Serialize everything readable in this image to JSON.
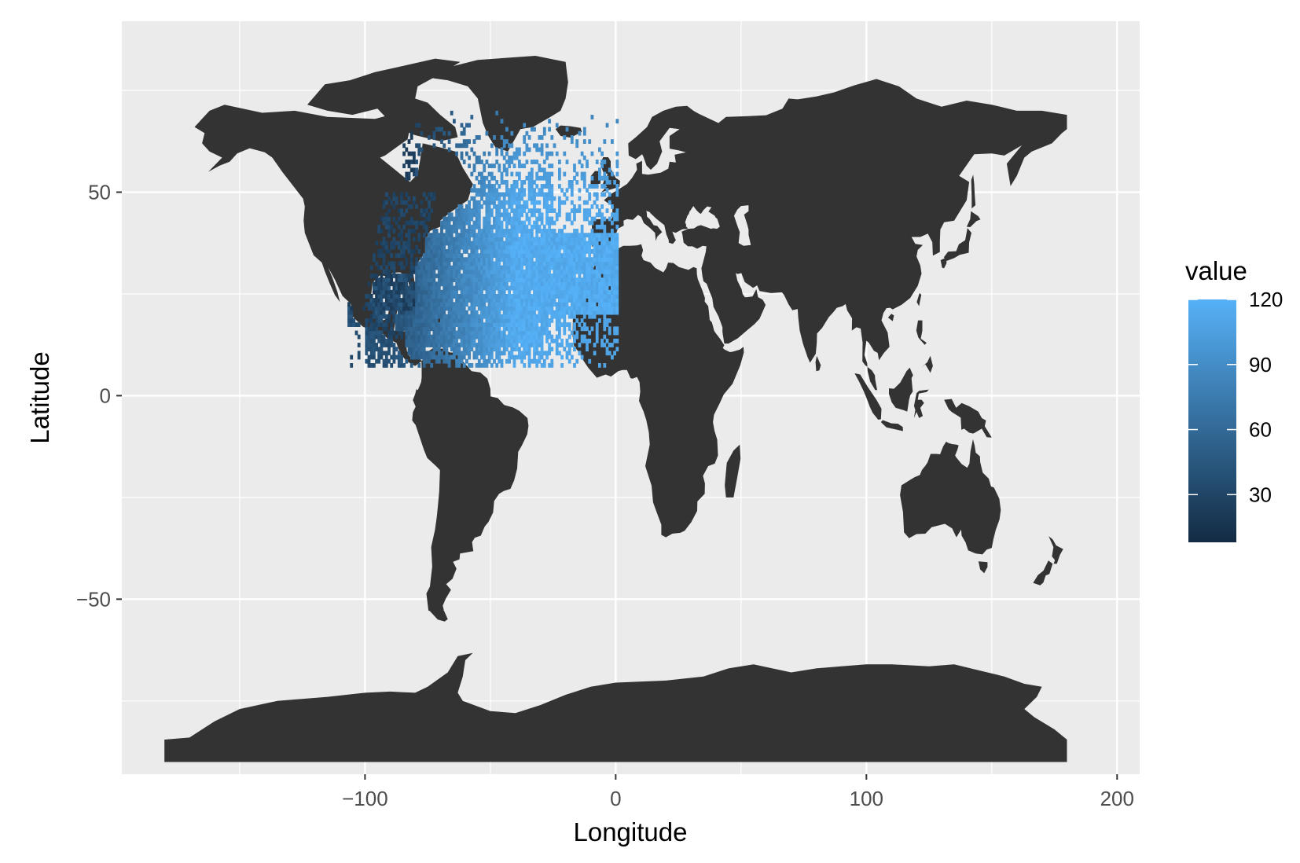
{
  "chart_data": {
    "type": "heatmap",
    "title": "",
    "xlabel": "Longitude",
    "ylabel": "Latitude",
    "xlim": [
      -197,
      209
    ],
    "ylim": [
      -93,
      92
    ],
    "x_ticks": [
      -100,
      0,
      100,
      200
    ],
    "x_tick_labels": [
      "−100",
      "0",
      "100",
      "200"
    ],
    "y_ticks": [
      -50,
      0,
      50
    ],
    "y_tick_labels": [
      "−50",
      "0",
      "50"
    ],
    "grid": true,
    "panel_background": "#ebebeb",
    "land_color": "#333333",
    "legend": {
      "title": "value",
      "position": "right",
      "range": [
        8,
        120
      ],
      "breaks": [
        30,
        60,
        90,
        120
      ],
      "break_labels": [
        "30",
        "60",
        "90",
        "120"
      ],
      "low_color": "#132b43",
      "high_color": "#56b1f7"
    },
    "bin_width_degrees": 1,
    "bin_region": {
      "lon_range": [
        -107,
        0
      ],
      "lat_range": [
        7,
        72
      ],
      "description": "1-degree binned counts over the North Atlantic, Gulf of Mexico, Caribbean and eastern North America"
    }
  }
}
